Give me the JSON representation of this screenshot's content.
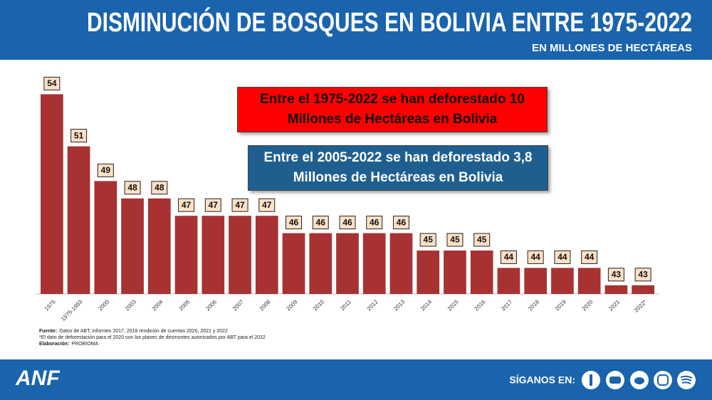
{
  "chart_data": {
    "type": "bar",
    "title": "DISMINUCIÓN DE BOSQUES EN BOLIVIA ENTRE 1975-2022",
    "subtitle": "EN MILLONES DE HECTÁREAS",
    "categories": [
      "1975",
      "1975-1993",
      "2000",
      "2003",
      "2004",
      "2005",
      "2006",
      "2007",
      "2008",
      "2009",
      "2010",
      "2011",
      "2012",
      "2013",
      "2014",
      "2015",
      "2016",
      "2017",
      "2018",
      "2019",
      "2020",
      "2021",
      "2022*"
    ],
    "values": [
      54,
      51,
      49,
      48,
      48,
      47,
      47,
      47,
      47,
      46,
      46,
      46,
      46,
      46,
      45,
      45,
      45,
      44,
      44,
      44,
      44,
      43,
      43
    ],
    "color": "#a83232",
    "ylim": [
      42.5,
      55
    ],
    "annotations": [
      {
        "text": "Entre el 1975-2022 se han deforestado 10 Millones de Hectáreas en Bolivia",
        "color": "#ff0000"
      },
      {
        "text": "Entre el 2005-2022 se han deforestado 3,8 Millones de Hectáreas en Bolivia",
        "color": "#1f5f8f"
      }
    ],
    "source_label": "Fuente:",
    "source": "Datos de ABT, informes 2017, 2018  rendición de cuentas 2020, 2021 y 2022",
    "note": "*El dato de deforestación para el 2020 son los planes de desmontes autorizados por ABT para el 2022",
    "credit_label": "Elaboración:",
    "credit": "PROBIOMA"
  },
  "footer": {
    "logo": "ANF",
    "follow": "SÍGANOS EN:"
  }
}
